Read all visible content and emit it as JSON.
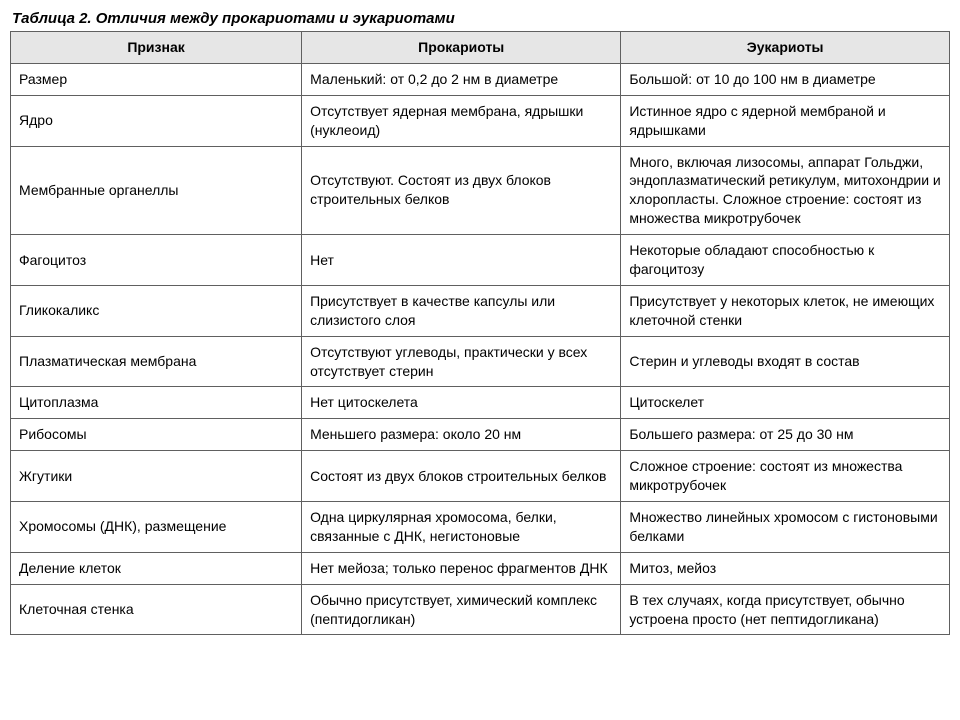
{
  "caption": "Таблица 2. Отличия между прокариотами и эукариотами",
  "table": {
    "column_widths_pct": [
      31,
      34,
      35
    ],
    "header_bg": "#e6e6e6",
    "border_color": "#606060",
    "text_color": "#000000",
    "font_size_pt": 11,
    "columns": [
      "Признак",
      "Прокариоты",
      "Эукариоты"
    ],
    "rows": [
      [
        "Размер",
        "Маленький: от 0,2 до 2 нм в диаметре",
        "Большой: от 10 до 100 нм в диаметре"
      ],
      [
        "Ядро",
        "Отсутствует ядерная мембрана, ядрышки (нуклеоид)",
        "Истинное ядро с ядерной мембраной и ядрышками"
      ],
      [
        "Мембранные органеллы",
        "Отсутствуют. Состоят из двух блоков строительных белков",
        "Много, включая лизосомы, аппарат Гольджи, эндоплазматический ретикулум, митохондрии и хлоропласты. Сложное строение: состоят из множества микротрубочек"
      ],
      [
        "Фагоцитоз",
        "Нет",
        "Некоторые обладают способностью к фагоцитозу"
      ],
      [
        "Гликокаликс",
        "Присутствует в качестве капсулы или слизистого слоя",
        "Присутствует у некоторых клеток, не имеющих клеточной стенки"
      ],
      [
        "Плазматическая мембрана",
        "Отсутствуют углеводы, практически у всех отсутствует стерин",
        "Стерин и углеводы входят в состав"
      ],
      [
        "Цитоплазма",
        "Нет цитоскелета",
        "Цитоскелет"
      ],
      [
        "Рибосомы",
        "Меньшего размера: около 20 нм",
        "Большего размера: от 25 до 30 нм"
      ],
      [
        "Жгутики",
        "Состоят из двух блоков строительных белков",
        "Сложное строение: состоят из множества микротрубочек"
      ],
      [
        "Хромосомы (ДНК), размещение",
        "Одна циркулярная хромосома, белки, связанные с ДНК, негистоновые",
        "Множество линейных хромосом с гистоновыми белками"
      ],
      [
        "Деление клеток",
        "Нет мейоза; только перенос фрагментов ДНК",
        "Митоз, мейоз"
      ],
      [
        "Клеточная стенка",
        "Обычно присутствует, химический комплекс (пептидогликан)",
        "В тех случаях, когда присутствует, обычно устроена просто (нет пептидогликана)"
      ]
    ]
  }
}
